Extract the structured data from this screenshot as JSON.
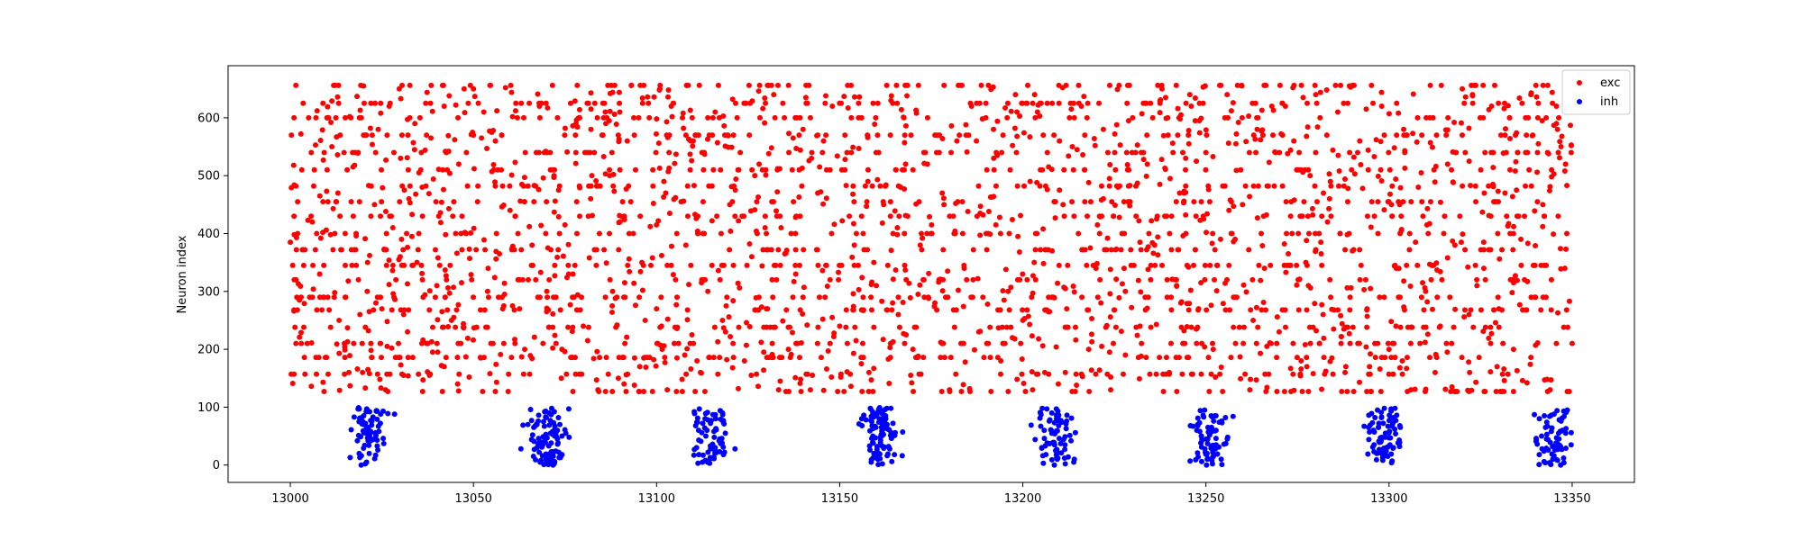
{
  "chart_data": {
    "type": "scatter",
    "title": "",
    "xlabel": "",
    "ylabel": "Neuron index",
    "xlim": [
      12983,
      13367
    ],
    "ylim": [
      -30,
      690
    ],
    "xticks": [
      "13000",
      "13050",
      "13100",
      "13150",
      "13200",
      "13250",
      "13300",
      "13350"
    ],
    "yticks": [
      "0",
      "100",
      "200",
      "300",
      "400",
      "500",
      "600"
    ],
    "grid": false,
    "legend_position": "top-right",
    "series": [
      {
        "name": "exc",
        "color": "#ff0000",
        "description_index_range": [
          127,
          656
        ],
        "time_range": [
          13000,
          13350
        ],
        "points": [
          [
            13000,
            385
          ],
          [
            13001,
            600
          ],
          [
            13001,
            268
          ],
          [
            13002,
            455
          ],
          [
            13003,
            210
          ],
          [
            13004,
            157
          ],
          [
            13005,
            600
          ],
          [
            13006,
            420
          ],
          [
            13007,
            186
          ],
          [
            13008,
            330
          ],
          [
            13009,
            527
          ],
          [
            13010,
            600
          ],
          [
            13011,
            238
          ],
          [
            13012,
            290
          ],
          [
            13013,
            470
          ],
          [
            13014,
            372
          ],
          [
            13015,
            600
          ],
          [
            13016,
            160
          ],
          [
            13017,
            540
          ],
          [
            13018,
            345
          ],
          [
            13019,
            260
          ],
          [
            13020,
            655
          ],
          [
            13021,
            300
          ],
          [
            13022,
            210
          ],
          [
            13023,
            450
          ],
          [
            13024,
            580
          ],
          [
            13025,
            270
          ],
          [
            13026,
            130
          ],
          [
            13027,
            620
          ],
          [
            13028,
            410
          ],
          [
            13030,
            360
          ],
          [
            13032,
            230
          ],
          [
            13034,
            590
          ],
          [
            13036,
            480
          ],
          [
            13038,
            155
          ],
          [
            13040,
            310
          ],
          [
            13042,
            620
          ],
          [
            13044,
            250
          ],
          [
            13046,
            520
          ],
          [
            13048,
            400
          ],
          [
            13050,
            650
          ],
          [
            13052,
            185
          ],
          [
            13054,
            340
          ],
          [
            13056,
            560
          ],
          [
            13058,
            270
          ],
          [
            13060,
            440
          ],
          [
            13062,
            600
          ],
          [
            13064,
            200
          ],
          [
            13066,
            380
          ],
          [
            13068,
            620
          ],
          [
            13070,
            265
          ],
          [
            13072,
            500
          ],
          [
            13074,
            150
          ],
          [
            13076,
            330
          ],
          [
            13078,
            590
          ],
          [
            13080,
            240
          ],
          [
            13082,
            460
          ],
          [
            13084,
            130
          ],
          [
            13086,
            610
          ],
          [
            13088,
            300
          ],
          [
            13090,
            420
          ],
          [
            13092,
            560
          ],
          [
            13094,
            185
          ],
          [
            13096,
            350
          ],
          [
            13098,
            600
          ],
          [
            13100,
            270
          ],
          [
            13102,
            490
          ],
          [
            13104,
            620
          ],
          [
            13106,
            210
          ],
          [
            13108,
            380
          ],
          [
            13110,
            560
          ],
          [
            13112,
            160
          ],
          [
            13114,
            300
          ],
          [
            13116,
            610
          ],
          [
            13118,
            250
          ],
          [
            13120,
            450
          ],
          [
            13122,
            600
          ],
          [
            13124,
            180
          ],
          [
            13126,
            360
          ],
          [
            13128,
            520
          ],
          [
            13130,
            270
          ],
          [
            13132,
            640
          ],
          [
            13134,
            410
          ],
          [
            13136,
            200
          ],
          [
            13138,
            330
          ],
          [
            13140,
            580
          ],
          [
            13142,
            130
          ],
          [
            13144,
            470
          ],
          [
            13146,
            290
          ],
          [
            13148,
            620
          ],
          [
            13150,
            240
          ],
          [
            13152,
            540
          ],
          [
            13154,
            380
          ],
          [
            13156,
            600
          ],
          [
            13158,
            160
          ],
          [
            13160,
            310
          ],
          [
            13162,
            450
          ],
          [
            13164,
            630
          ],
          [
            13166,
            260
          ],
          [
            13168,
            520
          ],
          [
            13170,
            200
          ],
          [
            13172,
            380
          ],
          [
            13174,
            600
          ],
          [
            13176,
            280
          ],
          [
            13178,
            470
          ],
          [
            13180,
            130
          ],
          [
            13182,
            560
          ],
          [
            13184,
            340
          ],
          [
            13186,
            620
          ],
          [
            13188,
            230
          ],
          [
            13190,
            400
          ],
          [
            13192,
            580
          ],
          [
            13194,
            180
          ],
          [
            13196,
            300
          ],
          [
            13198,
            640
          ],
          [
            13200,
            250
          ],
          [
            13202,
            490
          ],
          [
            13204,
            610
          ],
          [
            13206,
            160
          ],
          [
            13208,
            370
          ],
          [
            13210,
            560
          ],
          [
            13212,
            270
          ],
          [
            13214,
            430
          ],
          [
            13216,
            620
          ],
          [
            13218,
            200
          ],
          [
            13220,
            340
          ],
          [
            13222,
            580
          ],
          [
            13224,
            130
          ],
          [
            13226,
            480
          ],
          [
            13228,
            300
          ],
          [
            13230,
            600
          ],
          [
            13232,
            240
          ],
          [
            13234,
            520
          ],
          [
            13236,
            380
          ],
          [
            13238,
            650
          ],
          [
            13240,
            160
          ],
          [
            13242,
            310
          ],
          [
            13244,
            470
          ],
          [
            13246,
            620
          ],
          [
            13248,
            270
          ],
          [
            13250,
            540
          ],
          [
            13252,
            200
          ],
          [
            13254,
            390
          ],
          [
            13256,
            600
          ],
          [
            13258,
            290
          ],
          [
            13260,
            450
          ],
          [
            13262,
            130
          ],
          [
            13264,
            580
          ],
          [
            13266,
            340
          ],
          [
            13268,
            620
          ],
          [
            13270,
            230
          ],
          [
            13272,
            400
          ],
          [
            13274,
            560
          ],
          [
            13276,
            180
          ],
          [
            13278,
            310
          ],
          [
            13280,
            640
          ],
          [
            13282,
            260
          ],
          [
            13284,
            490
          ],
          [
            13286,
            610
          ],
          [
            13288,
            160
          ],
          [
            13290,
            370
          ],
          [
            13292,
            560
          ],
          [
            13294,
            270
          ],
          [
            13296,
            430
          ],
          [
            13298,
            620
          ],
          [
            13300,
            200
          ],
          [
            13302,
            340
          ],
          [
            13304,
            580
          ],
          [
            13306,
            130
          ],
          [
            13308,
            480
          ],
          [
            13310,
            300
          ],
          [
            13312,
            600
          ],
          [
            13314,
            240
          ],
          [
            13316,
            520
          ],
          [
            13318,
            380
          ],
          [
            13320,
            650
          ],
          [
            13322,
            160
          ],
          [
            13324,
            310
          ],
          [
            13326,
            470
          ],
          [
            13328,
            620
          ],
          [
            13330,
            270
          ],
          [
            13332,
            540
          ],
          [
            13334,
            200
          ],
          [
            13336,
            390
          ],
          [
            13338,
            600
          ],
          [
            13340,
            290
          ],
          [
            13342,
            450
          ],
          [
            13344,
            130
          ],
          [
            13346,
            580
          ],
          [
            13348,
            340
          ],
          [
            13350,
            620
          ],
          [
            13350,
            210
          ]
        ]
      },
      {
        "name": "inh",
        "color": "#0000ff",
        "bursts": [
          {
            "center": 13022,
            "count": 70
          },
          {
            "center": 13070,
            "count": 95
          },
          {
            "center": 13115,
            "count": 70
          },
          {
            "center": 13161,
            "count": 90
          },
          {
            "center": 13209,
            "count": 75
          },
          {
            "center": 13251,
            "count": 75
          },
          {
            "center": 13299,
            "count": 80
          },
          {
            "center": 13345,
            "count": 70
          }
        ],
        "y_range": [
          0,
          99
        ],
        "x_spread": 4
      }
    ]
  }
}
